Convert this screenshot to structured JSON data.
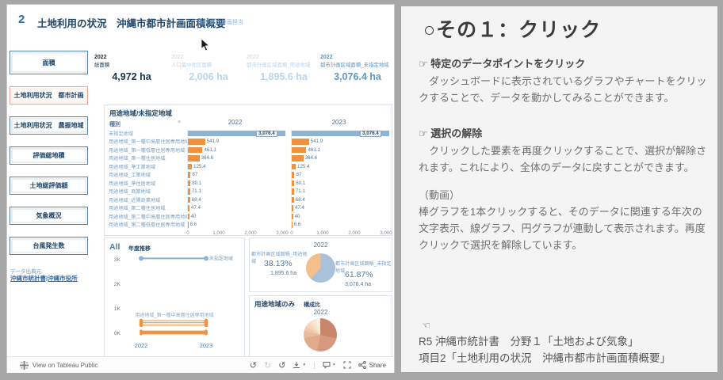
{
  "colors": {
    "bar_blue": "#8db3d6",
    "bar_orange": "#f0913f",
    "active_border": "#e8a593",
    "navy": "#1f4568"
  },
  "dashboard": {
    "header": {
      "index": "2",
      "title": "土地利用の状況　沖縄市都市計画面積概要",
      "source": "資料:都市計画担当"
    },
    "sidebar": {
      "buttons": [
        {
          "label": "面積",
          "active": false
        },
        {
          "label": "土地利用状況　都市計画",
          "active": true
        },
        {
          "label": "土地利用状況　農振地域",
          "active": false
        },
        {
          "label": "評価総地積",
          "active": false
        },
        {
          "label": "土地総評価額",
          "active": false
        },
        {
          "label": "気象概況",
          "active": false
        },
        {
          "label": "台風発生数",
          "active": false
        }
      ],
      "source_label": "データ出典元:",
      "source_link": "沖縄市統計書|沖縄市役所"
    },
    "kpis": [
      {
        "year": "2022",
        "label": "総面積",
        "value": "4,972 ha",
        "style": "dark"
      },
      {
        "year": "2022",
        "label": "人口集中地区面積",
        "value": "2,006 ha",
        "style": "faded"
      },
      {
        "year": "2022",
        "label": "都市計画区域面積_用途地域",
        "value": "1,895.6 ha",
        "style": "faded"
      },
      {
        "year": "2022",
        "label": "都市計画区域面積_未指定地域",
        "value": "3,076.4 ha",
        "style": "medium"
      }
    ],
    "bar_panel": {
      "title": "用途地域/未指定地域",
      "col_header": "種別"
    },
    "trend_panel": {
      "filter_label": "All",
      "title": "年度推移"
    },
    "pie_panel2": {
      "title": "用途地域のみ",
      "subtitle": "構成比"
    },
    "toolbar": {
      "brand": "View on Tableau Public",
      "share_label": "Share"
    }
  },
  "chart_data": [
    {
      "type": "bar",
      "orientation": "horizontal",
      "title": "用途地域/未指定地域",
      "years": [
        "2022",
        "2023"
      ],
      "categories": [
        "未指定地域",
        "用途地域_第一種中高層住居専用地域",
        "用途地域_第一種低層住居専用地域",
        "用途地域_第一種住居地域",
        "用途地域_準工業地域",
        "用途地域_工業地域",
        "用途地域_準住居地域",
        "用途地域_商業地域",
        "用途地域_近隣商業地域",
        "用途地域_第二種住居地域",
        "用途地域_第二種中高層住居専用地域",
        "用途地域_第二種低層住居専用地域"
      ],
      "values": [
        3076.4,
        541.9,
        461.1,
        364.6,
        125.4,
        87,
        80.1,
        71.1,
        68.4,
        47.4,
        40,
        8.6
      ],
      "labels": [
        "3,076.4",
        "541.9",
        "461.1",
        "364.6",
        "125.4",
        "87",
        "80.1",
        "71.1",
        "68.4",
        "47.4",
        "40",
        "8.6"
      ],
      "xlim": [
        0,
        3000
      ],
      "x_ticks": [
        "0",
        "1,000",
        "2,000",
        "3,000"
      ],
      "note": "values identical for 2022 and 2023; 未指定地域 bar blue and value boxed (selected), others orange"
    },
    {
      "type": "line",
      "title": "年度推移",
      "filter": "All",
      "x": [
        "2022",
        "2023"
      ],
      "y_ticks": [
        "3K",
        "2K",
        "1K",
        "0K"
      ],
      "ylim": [
        0,
        3250
      ],
      "series": [
        {
          "name": "未指定地域",
          "values": [
            3076.4,
            3076.4
          ],
          "color": "#8db3d6",
          "labeled": true
        },
        {
          "name": "用途地域_第一種中高層住居専用地域",
          "values": [
            541.9,
            541.9
          ],
          "color": "#f0913f",
          "labeled": true
        },
        {
          "name": "用途地域_第一種低層住居専用地域",
          "values": [
            461.1,
            461.1
          ],
          "color": "#f0913f"
        },
        {
          "name": "用途地域_第一種住居地域",
          "values": [
            364.6,
            364.6
          ],
          "color": "#f0913f"
        },
        {
          "name": "用途地域_準工業地域",
          "values": [
            125.4,
            125.4
          ],
          "color": "#f0913f"
        },
        {
          "name": "用途地域_工業地域",
          "values": [
            87,
            87
          ],
          "color": "#f0913f"
        },
        {
          "name": "用途地域_準住居地域",
          "values": [
            80.1,
            80.1
          ],
          "color": "#f0913f"
        },
        {
          "name": "用途地域_商業地域",
          "values": [
            71.1,
            71.1
          ],
          "color": "#f0913f"
        },
        {
          "name": "用途地域_近隣商業地域",
          "values": [
            68.4,
            68.4
          ],
          "color": "#f0913f"
        },
        {
          "name": "用途地域_第二種住居地域",
          "values": [
            47.4,
            47.4
          ],
          "color": "#f0913f"
        },
        {
          "name": "用途地域_第二種中高層住居専用地域",
          "values": [
            40,
            40
          ],
          "color": "#f0913f"
        },
        {
          "name": "用途地域_第二種低層住居専用地域",
          "values": [
            8.6,
            8.6
          ],
          "color": "#f0913f"
        }
      ]
    },
    {
      "type": "pie",
      "title": "2022",
      "rotate": -137.3,
      "slices": [
        {
          "label": "都市計画区域面積_用途地域",
          "pct": 38.13,
          "pct_label": "38.13%",
          "value": "1,895.6 ha",
          "color": "#f3c08d"
        },
        {
          "label": "都市計画区域面積_未指定地域",
          "pct": 61.87,
          "pct_label": "61.87%",
          "value": "3,076.4 ha",
          "color": "#a9c2da"
        }
      ]
    },
    {
      "type": "pie",
      "title": "用途地域のみ 構成比",
      "year": "2022",
      "rotate": 0,
      "total": 1895.6,
      "slices": [
        {
          "label": "用途地域_第一種中高層住居専用地域",
          "value": 541.9,
          "color": "#c9866b"
        },
        {
          "label": "用途地域_第一種低層住居専用地域",
          "value": 461.1,
          "color": "#d79a7f"
        },
        {
          "label": "用途地域_第一種住居地域",
          "value": 364.6,
          "color": "#e2ab8e"
        },
        {
          "label": "用途地域_準工業地域",
          "value": 125.4,
          "color": "#eabc9e"
        },
        {
          "label": "用途地域_工業地域",
          "value": 87,
          "color": "#f0c9ac"
        },
        {
          "label": "用途地域_準住居地域",
          "value": 80.1,
          "color": "#f4d4ba"
        },
        {
          "label": "用途地域_商業地域",
          "value": 71.1,
          "color": "#f7dec7"
        },
        {
          "label": "用途地域_近隣商業地域",
          "value": 68.4,
          "color": "#f9e6d2"
        },
        {
          "label": "用途地域_第二種住居地域",
          "value": 47.4,
          "color": "#fbecdb"
        },
        {
          "label": "用途地域_第二種中高層住居専用地域",
          "value": 40,
          "color": "#fcf1e3"
        },
        {
          "label": "用途地域_第二種低層住居専用地域",
          "value": 8.6,
          "color": "#fdf5ea"
        }
      ]
    }
  ],
  "guide": {
    "title": "○その１：クリック",
    "sections": [
      {
        "icon": "☞",
        "heading": "特定のデータポイントをクリック",
        "body": "　ダッシュボードに表示されているグラフやチャートをクリックすることで、データを動かしてみることができます。"
      },
      {
        "icon": "☞",
        "heading": "選択の解除",
        "body": "　クリックした要素を再度クリックすることで、選択が解除されます。これにより、全体のデータに戻すことができます。"
      }
    ],
    "video_label": "（動画）",
    "video_body": "棒グラフを1本クリックすると、そのデータに関連する年次の文字表示、線グラフ、円グラフが連動して表示されます。再度クリックで選択を解除しています。",
    "hand_icon": "☜",
    "footer_lines": [
      "R5 沖縄市統計書　分野１「土地および気象」",
      "項目2「土地利用の状況　沖縄市都市計画面積概要」"
    ]
  }
}
